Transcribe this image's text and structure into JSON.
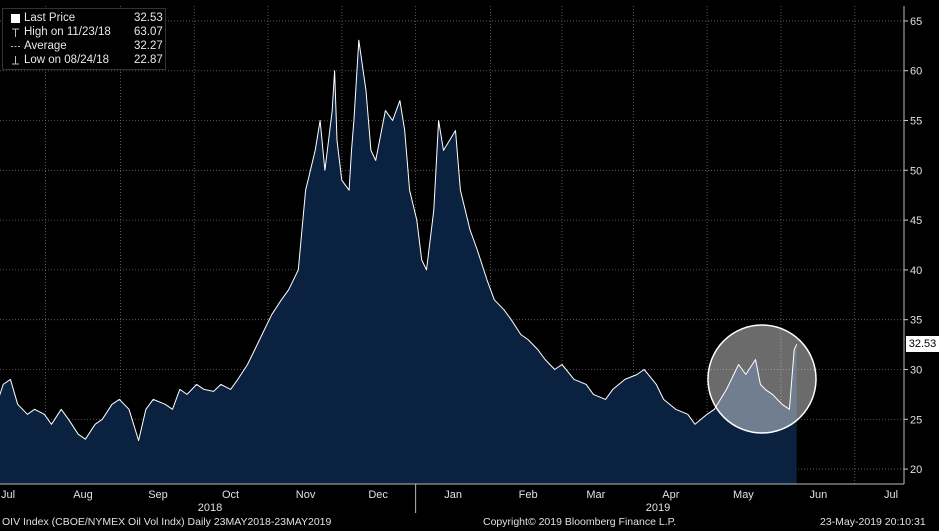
{
  "chart_data": {
    "type": "area",
    "title": "",
    "xlabel": "",
    "ylabel": "",
    "ylim": [
      18.5,
      66.5
    ],
    "y_ticks": [
      20,
      25,
      30,
      35,
      40,
      45,
      50,
      55,
      60,
      65
    ],
    "x_ticks": [
      "Jul",
      "Aug",
      "Sep",
      "Oct",
      "Nov",
      "Dec",
      "Jan",
      "Feb",
      "Mar",
      "Apr",
      "May",
      "Jun",
      "Jul"
    ],
    "years": [
      "2018",
      "2019"
    ],
    "grid": true,
    "legend_position": "top-left",
    "series": [
      {
        "name": "Last Price",
        "dates": [
          "2018-06-27",
          "2018-06-29",
          "2018-07-02",
          "2018-07-05",
          "2018-07-09",
          "2018-07-12",
          "2018-07-16",
          "2018-07-19",
          "2018-07-23",
          "2018-07-26",
          "2018-07-30",
          "2018-08-02",
          "2018-08-06",
          "2018-08-09",
          "2018-08-13",
          "2018-08-16",
          "2018-08-20",
          "2018-08-24",
          "2018-08-27",
          "2018-08-30",
          "2018-09-04",
          "2018-09-07",
          "2018-09-10",
          "2018-09-13",
          "2018-09-17",
          "2018-09-20",
          "2018-09-24",
          "2018-09-27",
          "2018-10-01",
          "2018-10-04",
          "2018-10-08",
          "2018-10-11",
          "2018-10-15",
          "2018-10-18",
          "2018-10-22",
          "2018-10-25",
          "2018-10-29",
          "2018-11-01",
          "2018-11-05",
          "2018-11-07",
          "2018-11-09",
          "2018-11-12",
          "2018-11-13",
          "2018-11-14",
          "2018-11-16",
          "2018-11-19",
          "2018-11-20",
          "2018-11-21",
          "2018-11-23",
          "2018-11-26",
          "2018-11-28",
          "2018-11-30",
          "2018-12-04",
          "2018-12-07",
          "2018-12-10",
          "2018-12-12",
          "2018-12-14",
          "2018-12-17",
          "2018-12-19",
          "2018-12-21",
          "2018-12-24",
          "2018-12-26",
          "2018-12-28",
          "2019-01-02",
          "2019-01-04",
          "2019-01-08",
          "2019-01-11",
          "2019-01-15",
          "2019-01-18",
          "2019-01-22",
          "2019-01-25",
          "2019-01-29",
          "2019-02-01",
          "2019-02-05",
          "2019-02-08",
          "2019-02-12",
          "2019-02-15",
          "2019-02-20",
          "2019-02-25",
          "2019-02-28",
          "2019-03-05",
          "2019-03-08",
          "2019-03-13",
          "2019-03-18",
          "2019-03-21",
          "2019-03-26",
          "2019-03-29",
          "2019-04-03",
          "2019-04-08",
          "2019-04-11",
          "2019-04-16",
          "2019-04-19",
          "2019-04-24",
          "2019-04-29",
          "2019-05-02",
          "2019-05-06",
          "2019-05-08",
          "2019-05-10",
          "2019-05-13",
          "2019-05-15",
          "2019-05-17",
          "2019-05-20",
          "2019-05-21",
          "2019-05-22",
          "2019-05-23"
        ],
        "values": [
          27.0,
          28.5,
          29.0,
          26.5,
          25.5,
          26.0,
          25.5,
          24.5,
          26.0,
          25.0,
          23.5,
          23.0,
          24.5,
          25.0,
          26.5,
          27.0,
          26.0,
          22.87,
          26.0,
          27.0,
          26.5,
          26.0,
          28.0,
          27.5,
          28.5,
          28.0,
          27.8,
          28.5,
          28.0,
          29.0,
          30.5,
          32.0,
          34.0,
          35.5,
          37.0,
          38.0,
          40.0,
          48.0,
          52.0,
          55.0,
          50.0,
          56.0,
          60.0,
          53.0,
          49.0,
          48.0,
          52.0,
          55.0,
          63.07,
          58.0,
          52.0,
          51.0,
          56.0,
          55.0,
          57.0,
          54.0,
          48.0,
          45.0,
          41.0,
          40.0,
          46.0,
          55.0,
          52.0,
          54.0,
          48.0,
          44.0,
          42.0,
          39.0,
          37.0,
          36.0,
          35.0,
          33.5,
          33.0,
          32.0,
          31.0,
          30.0,
          30.5,
          29.0,
          28.5,
          27.5,
          27.0,
          28.0,
          29.0,
          29.5,
          30.0,
          28.5,
          27.0,
          26.0,
          25.5,
          24.5,
          25.5,
          26.0,
          28.0,
          30.5,
          29.5,
          31.0,
          28.5,
          28.0,
          27.5,
          27.0,
          26.5,
          26.0,
          29.0,
          32.0,
          32.53
        ]
      }
    ],
    "legend": [
      {
        "label": "Last Price",
        "value": "32.53",
        "marker": "square",
        "color": "#ffffff"
      },
      {
        "label": "High on 11/23/18",
        "value": "63.07",
        "marker": "high"
      },
      {
        "label": "Average",
        "value": "32.27",
        "marker": "avg"
      },
      {
        "label": "Low on 08/24/18",
        "value": "22.87",
        "marker": "low"
      }
    ],
    "last_price_label": "32.53"
  },
  "footer": {
    "left": "OIV Index (CBOE/NYMEX Oil Vol Indx)  Daily 23MAY2018-23MAY2019",
    "center": "Copyright© 2019 Bloomberg Finance L.P.",
    "right": "23-May-2019 20:10:31"
  },
  "colors": {
    "background": "#000000",
    "area_fill": "#0a2240",
    "line": "#ffffff",
    "grid": "#6a6a6a",
    "highlight_circle": "#ffffff"
  }
}
